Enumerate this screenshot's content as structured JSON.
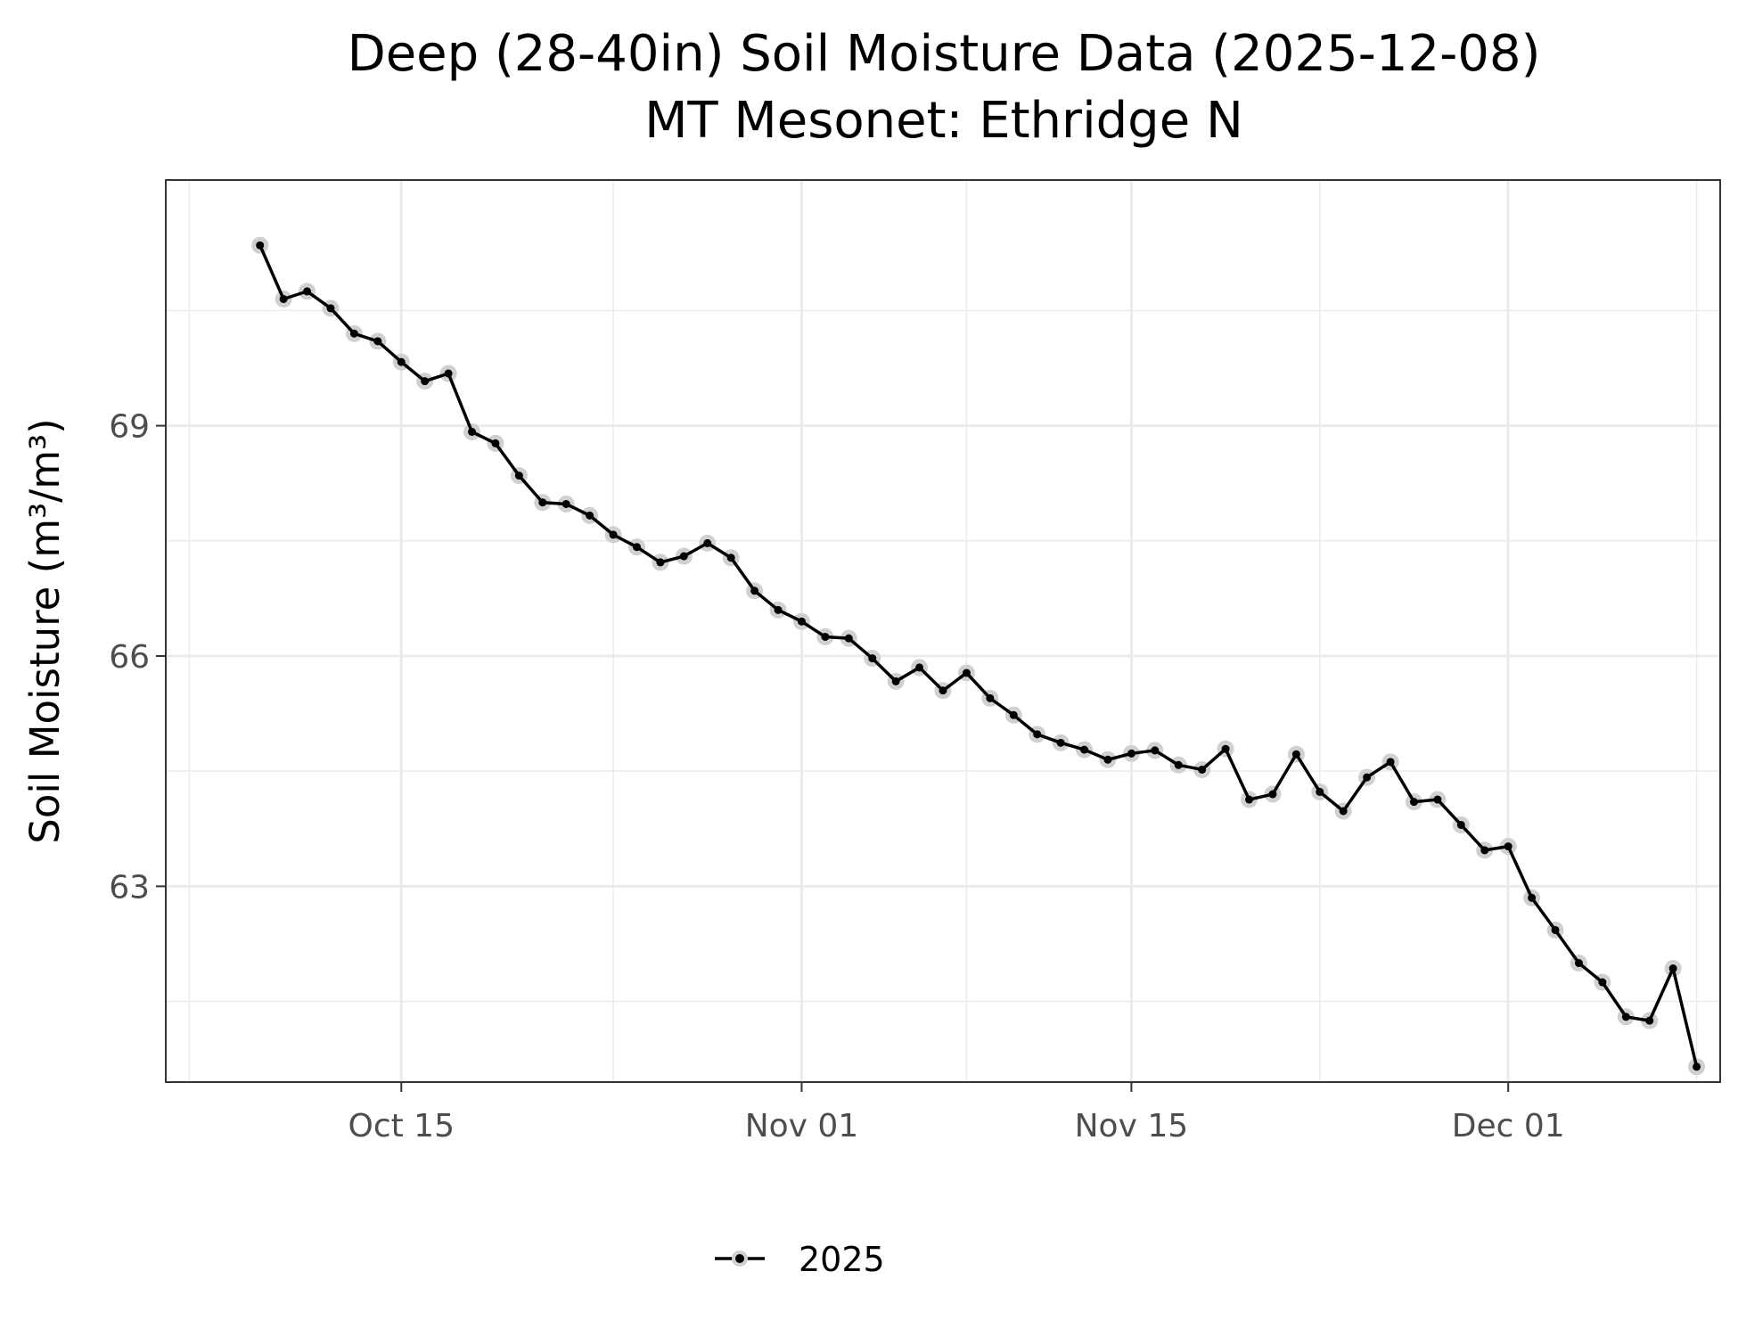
{
  "chart_data": {
    "type": "line",
    "title": "Deep (28-40in) Soil Moisture Data (2025-12-08)",
    "subtitle": "MT Mesonet: Ethridge N",
    "xlabel": "",
    "ylabel": "Soil Moisture (m³/m³)",
    "x_range": [
      "2025-10-05",
      "2025-12-10"
    ],
    "ylim": [
      60.45,
      72.2
    ],
    "x_ticks": [
      {
        "date": "2025-10-15",
        "label": "Oct 15"
      },
      {
        "date": "2025-11-01",
        "label": "Nov 01"
      },
      {
        "date": "2025-11-15",
        "label": "Nov 15"
      },
      {
        "date": "2025-12-01",
        "label": "Dec 01"
      }
    ],
    "x_minor_ticks": [
      "2025-10-06",
      "2025-10-24",
      "2025-11-08",
      "2025-11-23",
      "2025-12-09"
    ],
    "y_ticks": [
      {
        "value": 63,
        "label": "63"
      },
      {
        "value": 66,
        "label": "66"
      },
      {
        "value": 69,
        "label": "69"
      }
    ],
    "y_minor_ticks": [
      61.5,
      64.5,
      67.5,
      70.5
    ],
    "grid": true,
    "legend_position": "bottom",
    "series": [
      {
        "name": "2025",
        "color": "#000000",
        "halo_color": "#d0d0d0",
        "points": [
          [
            "2025-10-09",
            71.35
          ],
          [
            "2025-10-10",
            70.65
          ],
          [
            "2025-10-11",
            70.75
          ],
          [
            "2025-10-12",
            70.53
          ],
          [
            "2025-10-13",
            70.2
          ],
          [
            "2025-10-14",
            70.1
          ],
          [
            "2025-10-15",
            69.83
          ],
          [
            "2025-10-16",
            69.58
          ],
          [
            "2025-10-17",
            69.68
          ],
          [
            "2025-10-18",
            68.92
          ],
          [
            "2025-10-19",
            68.77
          ],
          [
            "2025-10-20",
            68.35
          ],
          [
            "2025-10-21",
            68.0
          ],
          [
            "2025-10-22",
            67.98
          ],
          [
            "2025-10-23",
            67.83
          ],
          [
            "2025-10-24",
            67.58
          ],
          [
            "2025-10-25",
            67.42
          ],
          [
            "2025-10-26",
            67.22
          ],
          [
            "2025-10-27",
            67.3
          ],
          [
            "2025-10-28",
            67.47
          ],
          [
            "2025-10-29",
            67.28
          ],
          [
            "2025-10-30",
            66.85
          ],
          [
            "2025-10-31",
            66.6
          ],
          [
            "2025-11-01",
            66.45
          ],
          [
            "2025-11-02",
            66.25
          ],
          [
            "2025-11-03",
            66.23
          ],
          [
            "2025-11-04",
            65.97
          ],
          [
            "2025-11-05",
            65.67
          ],
          [
            "2025-11-06",
            65.85
          ],
          [
            "2025-11-07",
            65.55
          ],
          [
            "2025-11-08",
            65.78
          ],
          [
            "2025-11-09",
            65.45
          ],
          [
            "2025-11-10",
            65.23
          ],
          [
            "2025-11-11",
            64.98
          ],
          [
            "2025-11-12",
            64.87
          ],
          [
            "2025-11-13",
            64.78
          ],
          [
            "2025-11-14",
            64.65
          ],
          [
            "2025-11-15",
            64.73
          ],
          [
            "2025-11-16",
            64.77
          ],
          [
            "2025-11-17",
            64.58
          ],
          [
            "2025-11-18",
            64.52
          ],
          [
            "2025-11-19",
            64.79
          ],
          [
            "2025-11-20",
            64.13
          ],
          [
            "2025-11-21",
            64.2
          ],
          [
            "2025-11-22",
            64.72
          ],
          [
            "2025-11-23",
            64.23
          ],
          [
            "2025-11-24",
            63.98
          ],
          [
            "2025-11-25",
            64.42
          ],
          [
            "2025-11-26",
            64.62
          ],
          [
            "2025-11-27",
            64.1
          ],
          [
            "2025-11-28",
            64.13
          ],
          [
            "2025-11-29",
            63.8
          ],
          [
            "2025-11-30",
            63.47
          ],
          [
            "2025-12-01",
            63.52
          ],
          [
            "2025-12-02",
            62.85
          ],
          [
            "2025-12-03",
            62.43
          ],
          [
            "2025-12-04",
            62.0
          ],
          [
            "2025-12-05",
            61.75
          ],
          [
            "2025-12-06",
            61.3
          ],
          [
            "2025-12-07",
            61.25
          ],
          [
            "2025-12-08",
            61.93
          ],
          [
            "2025-12-09",
            60.65
          ]
        ]
      }
    ]
  }
}
